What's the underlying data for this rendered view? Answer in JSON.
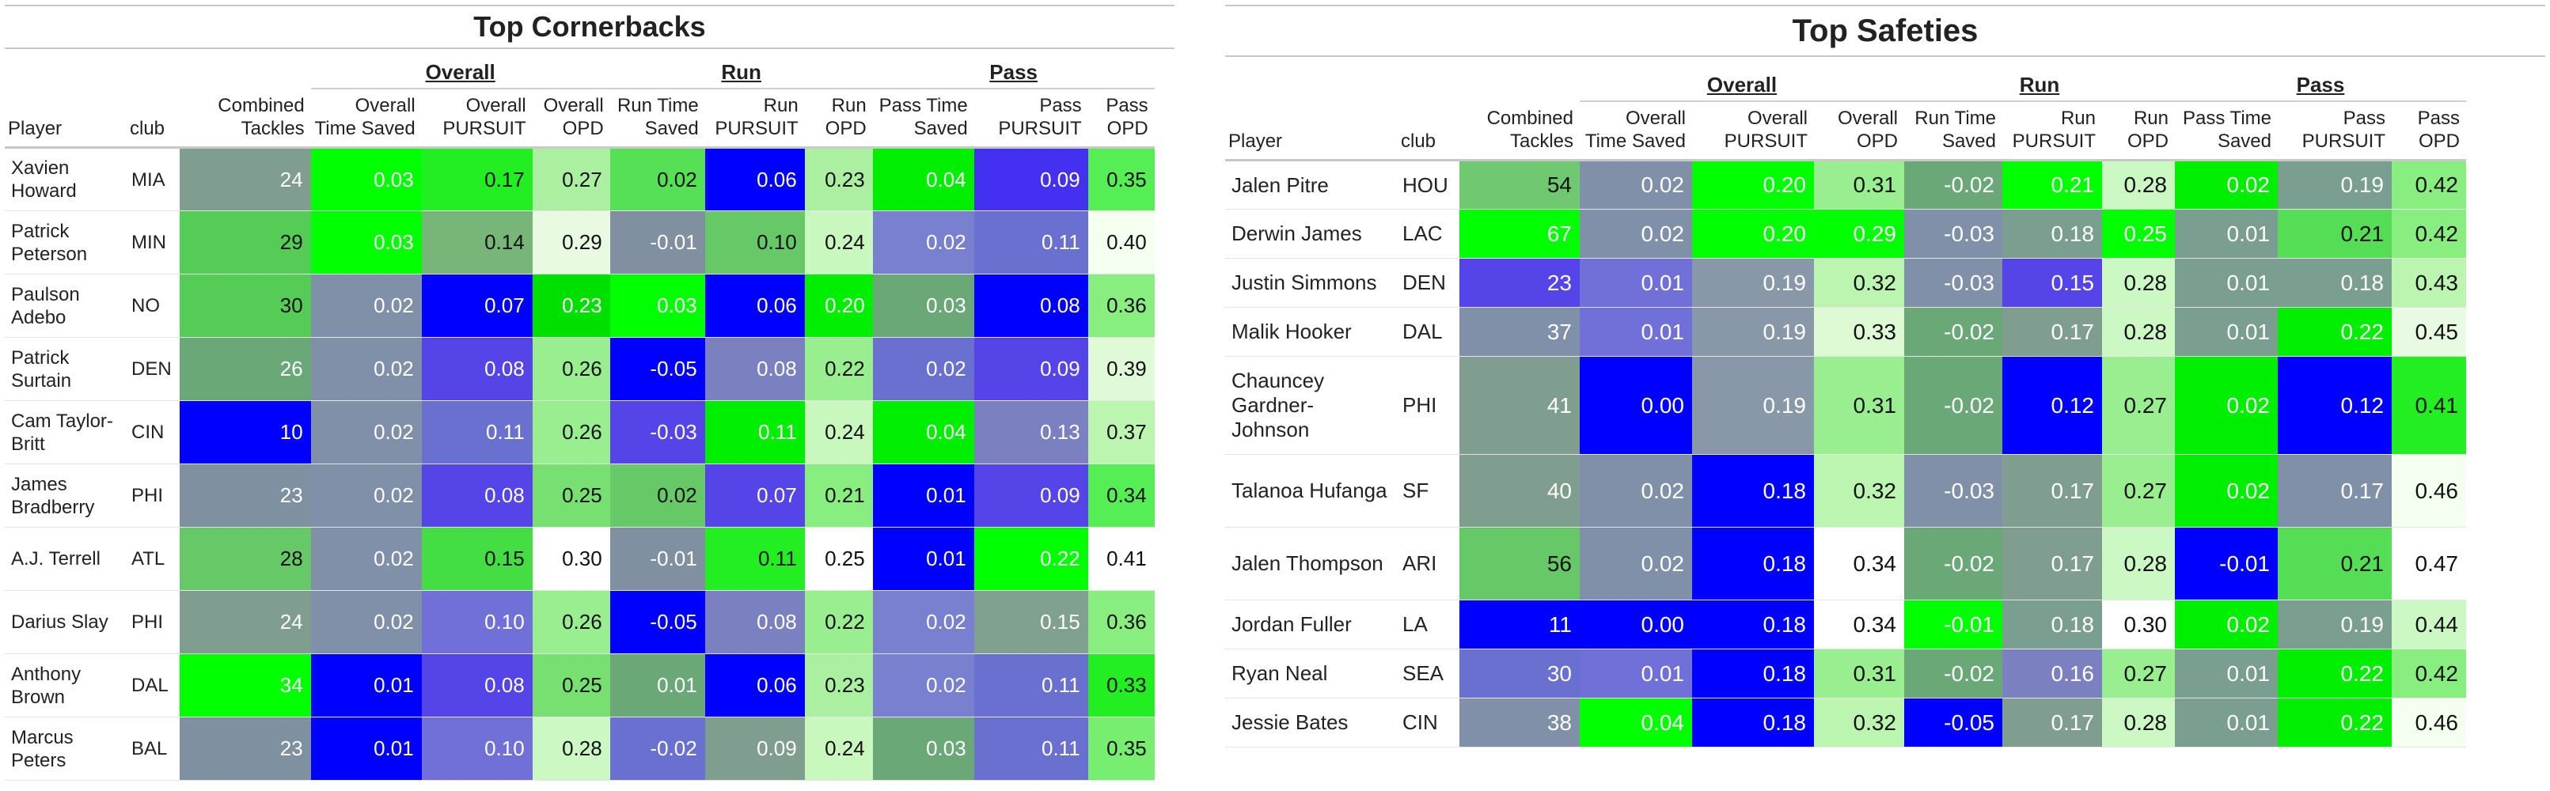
{
  "cornerbacks": {
    "title": "Top Cornerbacks",
    "groups": [
      "Overall",
      "Run",
      "Pass"
    ],
    "columns": [
      "Player",
      "club",
      "Combined Tackles",
      "Overall Time Saved",
      "Overall PURSUIT",
      "Overall OPD",
      "Run Time Saved",
      "Run PURSUIT",
      "Run OPD",
      "Pass Time Saved",
      "Pass PURSUIT",
      "Pass OPD"
    ],
    "rows": [
      {
        "player": "Xavien Howard",
        "club": "MIA",
        "values": [
          "24",
          "0.03",
          "0.17",
          "0.27",
          "0.02",
          "0.06",
          "0.23",
          "0.04",
          "0.09",
          "0.35"
        ],
        "colors": [
          "#7f9e90",
          "#00ff00",
          "#22ee22",
          "#aaf0a0",
          "#55e055",
          "#0000ff",
          "#aaf0a0",
          "#00ee00",
          "#4430f0",
          "#55ee55"
        ]
      },
      {
        "player": "Patrick Peterson",
        "club": "MIN",
        "values": [
          "29",
          "0.03",
          "0.14",
          "0.29",
          "-0.01",
          "0.10",
          "0.24",
          "0.02",
          "0.11",
          "0.40"
        ],
        "colors": [
          "#55cc55",
          "#00ff00",
          "#78b578",
          "#e8fae2",
          "#8090a0",
          "#66c866",
          "#c8f8be",
          "#7a80d0",
          "#6a70d0",
          "#f4fff0"
        ]
      },
      {
        "player": "Paulson Adebo",
        "club": "NO",
        "values": [
          "30",
          "0.02",
          "0.07",
          "0.23",
          "0.03",
          "0.06",
          "0.20",
          "0.03",
          "0.08",
          "0.36"
        ],
        "colors": [
          "#55cc55",
          "#7f90a8",
          "#0000ff",
          "#00e000",
          "#00ff00",
          "#0000ff",
          "#00ee00",
          "#6aa878",
          "#0000ff",
          "#88ee80"
        ]
      },
      {
        "player": "Patrick Surtain",
        "club": "DEN",
        "values": [
          "26",
          "0.02",
          "0.08",
          "0.26",
          "-0.05",
          "0.08",
          "0.22",
          "0.02",
          "0.09",
          "0.39"
        ],
        "colors": [
          "#6aa878",
          "#7f90a8",
          "#5545e8",
          "#99ee90",
          "#0000ff",
          "#7a80c0",
          "#99ee90",
          "#6a70d0",
          "#5545e8",
          "#e0fad8"
        ]
      },
      {
        "player": "Cam Taylor-Britt",
        "club": "CIN",
        "values": [
          "10",
          "0.02",
          "0.11",
          "0.26",
          "-0.03",
          "0.11",
          "0.24",
          "0.04",
          "0.13",
          "0.37"
        ],
        "colors": [
          "#0000ff",
          "#7f90a8",
          "#6a70d0",
          "#99ee90",
          "#5545e8",
          "#00ee00",
          "#c8f8be",
          "#00ee00",
          "#7a80c0",
          "#bbf5b0"
        ]
      },
      {
        "player": "James Bradberry",
        "club": "PHI",
        "values": [
          "23",
          "0.02",
          "0.08",
          "0.25",
          "0.02",
          "0.07",
          "0.21",
          "0.01",
          "0.09",
          "0.34"
        ],
        "colors": [
          "#7f90a0",
          "#7f90a8",
          "#5545e8",
          "#77e070",
          "#66c866",
          "#5545e8",
          "#88ee80",
          "#0000ff",
          "#5545e8",
          "#55ee55"
        ]
      },
      {
        "player": "A.J. Terrell",
        "club": "ATL",
        "values": [
          "28",
          "0.02",
          "0.15",
          "0.30",
          "-0.01",
          "0.11",
          "0.25",
          "0.01",
          "0.22",
          "0.41"
        ],
        "colors": [
          "#66c866",
          "#7f90a8",
          "#44dd44",
          "#ffffff",
          "#8090a0",
          "#22ee22",
          "#ffffff",
          "#0000ff",
          "#00ff00",
          "#ffffff"
        ]
      },
      {
        "player": "Darius Slay",
        "club": "PHI",
        "values": [
          "24",
          "0.02",
          "0.10",
          "0.26",
          "-0.05",
          "0.08",
          "0.22",
          "0.02",
          "0.15",
          "0.36"
        ],
        "colors": [
          "#7f9e90",
          "#7f90a8",
          "#7070d8",
          "#99ee90",
          "#0000ff",
          "#7a80c0",
          "#99ee90",
          "#7a80d0",
          "#80a090",
          "#88ee80"
        ]
      },
      {
        "player": "Anthony Brown",
        "club": "DAL",
        "values": [
          "34",
          "0.01",
          "0.08",
          "0.25",
          "0.01",
          "0.06",
          "0.23",
          "0.02",
          "0.11",
          "0.33"
        ],
        "colors": [
          "#00ff00",
          "#0000ff",
          "#5545e8",
          "#77e070",
          "#6aa878",
          "#0000ff",
          "#aaf0a0",
          "#7a80d0",
          "#6a70d0",
          "#22ee22"
        ]
      },
      {
        "player": "Marcus Peters",
        "club": "BAL",
        "values": [
          "23",
          "0.01",
          "0.10",
          "0.28",
          "-0.02",
          "0.09",
          "0.24",
          "0.03",
          "0.11",
          "0.35"
        ],
        "colors": [
          "#7f90a0",
          "#0000ff",
          "#7070d8",
          "#ccf8c4",
          "#6a70d0",
          "#7f9e90",
          "#c8f8be",
          "#6aa878",
          "#6a70d0",
          "#77ee70"
        ]
      }
    ]
  },
  "safeties": {
    "title": "Top Safeties",
    "groups": [
      "Overall",
      "Run",
      "Pass"
    ],
    "columns": [
      "Player",
      "club",
      "Combined Tackles",
      "Overall Time Saved",
      "Overall PURSUIT",
      "Overall OPD",
      "Run Time Saved",
      "Run PURSUIT",
      "Run OPD",
      "Pass Time Saved",
      "Pass PURSUIT",
      "Pass OPD"
    ],
    "rows": [
      {
        "player": "Jalen Pitre",
        "club": "HOU",
        "values": [
          "54",
          "0.02",
          "0.20",
          "0.31",
          "-0.02",
          "0.21",
          "0.28",
          "0.02",
          "0.19",
          "0.42"
        ],
        "colors": [
          "#70c870",
          "#8090a8",
          "#00ff00",
          "#99ee90",
          "#6aa878",
          "#00ff00",
          "#ccf8c4",
          "#00ee00",
          "#7a9e90",
          "#88ee80"
        ]
      },
      {
        "player": "Derwin James",
        "club": "LAC",
        "values": [
          "67",
          "0.02",
          "0.20",
          "0.29",
          "-0.03",
          "0.18",
          "0.25",
          "0.01",
          "0.21",
          "0.42"
        ],
        "colors": [
          "#00ff00",
          "#8090a8",
          "#00ff00",
          "#00ff00",
          "#8090a8",
          "#7a9e90",
          "#00ff00",
          "#7a9e90",
          "#55dd55",
          "#88ee80"
        ]
      },
      {
        "player": "Justin Simmons",
        "club": "DEN",
        "values": [
          "23",
          "0.01",
          "0.19",
          "0.32",
          "-0.03",
          "0.15",
          "0.28",
          "0.01",
          "0.18",
          "0.43"
        ],
        "colors": [
          "#5545e8",
          "#7070d8",
          "#8898a8",
          "#bbf5b0",
          "#8090a8",
          "#5545e8",
          "#ccf8c4",
          "#7a9e90",
          "#7a9e90",
          "#bbf5b0"
        ]
      },
      {
        "player": "Malik Hooker",
        "club": "DAL",
        "values": [
          "37",
          "0.01",
          "0.19",
          "0.33",
          "-0.02",
          "0.17",
          "0.28",
          "0.01",
          "0.22",
          "0.45"
        ],
        "colors": [
          "#7f90a8",
          "#7070d8",
          "#8898a8",
          "#ddfad5",
          "#6aa878",
          "#7f9e90",
          "#ccf8c4",
          "#7a9e90",
          "#00ee00",
          "#e8fae2"
        ]
      },
      {
        "player": "Chauncey Gardner-Johnson",
        "club": "PHI",
        "values": [
          "41",
          "0.00",
          "0.19",
          "0.31",
          "-0.02",
          "0.12",
          "0.27",
          "0.02",
          "0.12",
          "0.41"
        ],
        "colors": [
          "#7f9e90",
          "#0000ff",
          "#8898a8",
          "#99ee90",
          "#6aa878",
          "#0000ff",
          "#99ee90",
          "#00ee00",
          "#0000ff",
          "#22ee22"
        ]
      },
      {
        "player": "Talanoa Hufanga",
        "club": "SF",
        "values": [
          "40",
          "0.02",
          "0.18",
          "0.32",
          "-0.03",
          "0.17",
          "0.27",
          "0.02",
          "0.17",
          "0.46"
        ],
        "colors": [
          "#7f9e90",
          "#8090a8",
          "#0000ff",
          "#bbf5b0",
          "#8090a8",
          "#7f9e90",
          "#99ee90",
          "#00ee00",
          "#8090a8",
          "#f4fff0"
        ]
      },
      {
        "player": "Jalen Thompson",
        "club": "ARI",
        "values": [
          "56",
          "0.02",
          "0.18",
          "0.34",
          "-0.02",
          "0.17",
          "0.28",
          "-0.01",
          "0.21",
          "0.47"
        ],
        "colors": [
          "#66c866",
          "#8090a8",
          "#0000ff",
          "#ffffff",
          "#6aa878",
          "#7f9e90",
          "#ccf8c4",
          "#0000ff",
          "#55dd55",
          "#ffffff"
        ]
      },
      {
        "player": "Jordan Fuller",
        "club": "LA",
        "values": [
          "11",
          "0.00",
          "0.18",
          "0.34",
          "-0.01",
          "0.18",
          "0.30",
          "0.02",
          "0.19",
          "0.44"
        ],
        "colors": [
          "#0000ff",
          "#0000ff",
          "#0000ff",
          "#ffffff",
          "#00ff00",
          "#7a9e90",
          "#ffffff",
          "#00ee00",
          "#7a9e90",
          "#ccf8c4"
        ]
      },
      {
        "player": "Ryan Neal",
        "club": "SEA",
        "values": [
          "30",
          "0.01",
          "0.18",
          "0.31",
          "-0.02",
          "0.16",
          "0.27",
          "0.01",
          "0.22",
          "0.42"
        ],
        "colors": [
          "#6a70d0",
          "#7070d8",
          "#0000ff",
          "#99ee90",
          "#6aa878",
          "#7a80c0",
          "#99ee90",
          "#7a9e90",
          "#00ee00",
          "#88ee80"
        ]
      },
      {
        "player": "Jessie Bates",
        "club": "CIN",
        "values": [
          "38",
          "0.04",
          "0.18",
          "0.32",
          "-0.05",
          "0.17",
          "0.28",
          "0.01",
          "0.22",
          "0.46"
        ],
        "colors": [
          "#7f90a8",
          "#00ff00",
          "#0000ff",
          "#bbf5b0",
          "#0000ff",
          "#7f9e90",
          "#ccf8c4",
          "#7a9e90",
          "#00ee00",
          "#f4fff0"
        ]
      }
    ]
  }
}
